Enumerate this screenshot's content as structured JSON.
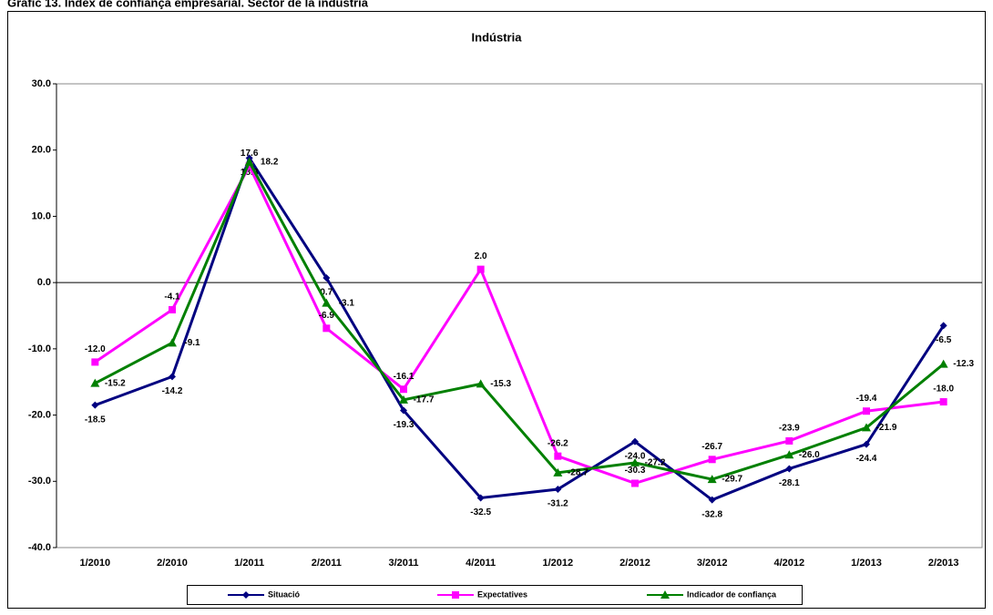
{
  "chart_data": {
    "type": "line",
    "title": "Gràfic 13. Índex de confiança empresarial. Sector de la indústria",
    "subtitle": "Indústria",
    "categories": [
      "1/2010",
      "2/2010",
      "1/2011",
      "2/2011",
      "3/2011",
      "4/2011",
      "1/2012",
      "2/2012",
      "3/2012",
      "4/2012",
      "1/2013",
      "2/2013"
    ],
    "series": [
      {
        "name": "Situació",
        "color": "#000080",
        "marker": "diamond",
        "values": [
          -18.5,
          -14.2,
          18.8,
          0.7,
          -19.3,
          -32.5,
          -31.2,
          -24.0,
          -32.8,
          -28.1,
          -24.4,
          -6.5
        ],
        "value_labels": [
          "-18.5",
          "-14.2",
          "18.8",
          "0.7",
          "-19.3",
          "-32.5",
          "-31.2",
          "-24.0",
          "-32.8",
          "-28.1",
          "-24.4",
          "-6.5"
        ]
      },
      {
        "name": "Expectatives",
        "color": "#ff00ff",
        "marker": "square",
        "values": [
          -12.0,
          -4.1,
          17.6,
          -6.9,
          -16.1,
          2.0,
          -26.2,
          -30.3,
          -26.7,
          -23.9,
          -19.4,
          -18.0
        ],
        "value_labels": [
          "-12.0",
          "-4.1",
          "17.6",
          "-6.9",
          "-16.1",
          "2.0",
          "-26.2",
          "-30.3",
          "-26.7",
          "-23.9",
          "-19.4",
          "-18.0"
        ]
      },
      {
        "name": "Indicador de confiança",
        "color": "#008000",
        "marker": "triangle",
        "values": [
          -15.2,
          -9.1,
          18.2,
          -3.1,
          -17.7,
          -15.3,
          -28.7,
          -27.2,
          -29.7,
          -26.0,
          -21.9,
          -12.3
        ],
        "value_labels": [
          "-15.2",
          "-9.1",
          "18.2",
          "-3.1",
          "-17.7",
          "-15.3",
          "-28.7",
          "-27.2",
          "-29.7",
          "-26.0",
          "-21.9",
          "-12.3"
        ]
      }
    ],
    "ylim": [
      -40,
      30
    ],
    "yticks": [
      {
        "value": -40,
        "label": "-40.0"
      },
      {
        "value": -30,
        "label": "-30.0"
      },
      {
        "value": -20,
        "label": "-20.0"
      },
      {
        "value": -10,
        "label": "-10.0"
      },
      {
        "value": 0,
        "label": "0.0"
      },
      {
        "value": 10,
        "label": "10.0"
      },
      {
        "value": 20,
        "label": "20.0"
      },
      {
        "value": 30,
        "label": "30.0"
      }
    ],
    "grid": false,
    "legend": "bottom"
  }
}
